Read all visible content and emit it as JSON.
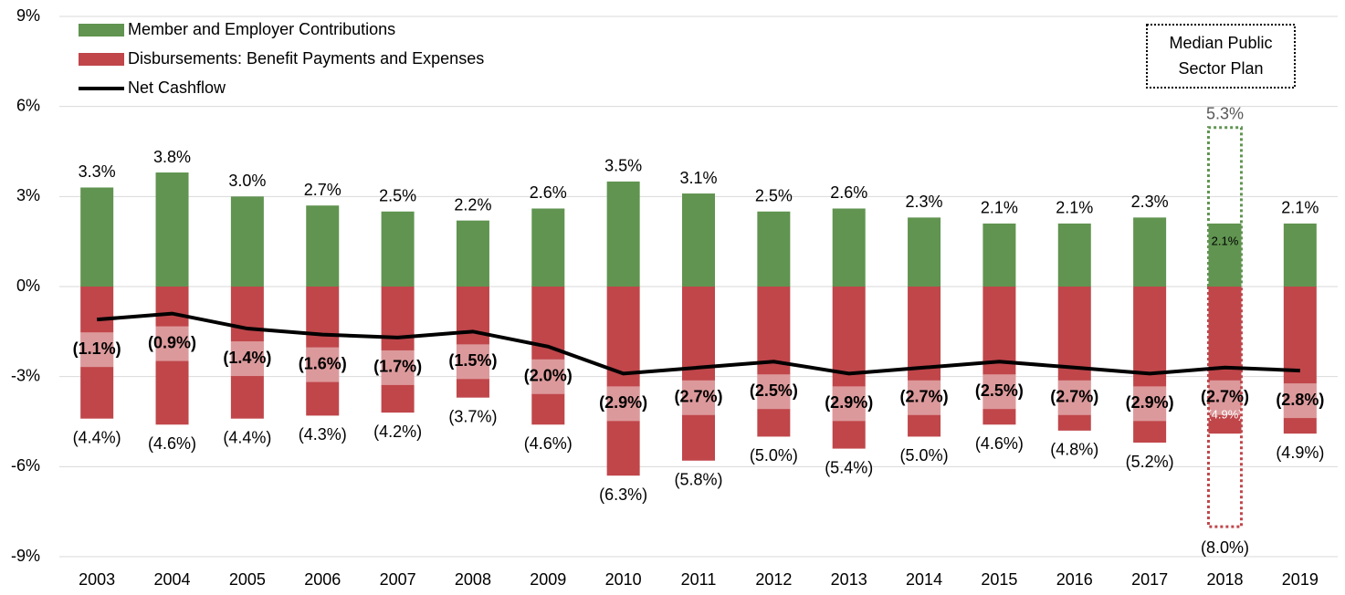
{
  "chart_data": {
    "type": "bar",
    "categories": [
      "2003",
      "2004",
      "2005",
      "2006",
      "2007",
      "2008",
      "2009",
      "2010",
      "2011",
      "2012",
      "2013",
      "2014",
      "2015",
      "2016",
      "2017",
      "2018",
      "2019"
    ],
    "series": [
      {
        "name": "Member and Employer Contributions",
        "color": "#609450",
        "values": [
          3.3,
          3.8,
          3.0,
          2.7,
          2.5,
          2.2,
          2.6,
          3.5,
          3.1,
          2.5,
          2.6,
          2.3,
          2.1,
          2.1,
          2.3,
          2.1,
          2.1
        ],
        "value_labels": [
          "3.3%",
          "3.8%",
          "3.0%",
          "2.7%",
          "2.5%",
          "2.2%",
          "2.6%",
          "3.5%",
          "3.1%",
          "2.5%",
          "2.6%",
          "2.3%",
          "2.1%",
          "2.1%",
          "2.3%",
          "2.1%",
          "2.1%"
        ]
      },
      {
        "name": "Disbursements: Benefit Payments and Expenses",
        "color": "#c0464a",
        "values": [
          -4.4,
          -4.6,
          -4.4,
          -4.3,
          -4.2,
          -3.7,
          -4.6,
          -6.3,
          -5.8,
          -5.0,
          -5.4,
          -5.0,
          -4.6,
          -4.8,
          -5.2,
          -4.9,
          -4.9
        ],
        "value_labels": [
          "(4.4%)",
          "(4.6%)",
          "(4.4%)",
          "(4.3%)",
          "(4.2%)",
          "(3.7%)",
          "(4.6%)",
          "(6.3%)",
          "(5.8%)",
          "(5.0%)",
          "(5.4%)",
          "(5.0%)",
          "(4.6%)",
          "(4.8%)",
          "(5.2%)",
          "(4.9%)",
          "(4.9%)"
        ]
      },
      {
        "name": "Net Cashflow",
        "type": "line",
        "color": "#000000",
        "values": [
          -1.1,
          -0.9,
          -1.4,
          -1.6,
          -1.7,
          -1.5,
          -2.0,
          -2.9,
          -2.7,
          -2.5,
          -2.9,
          -2.7,
          -2.5,
          -2.7,
          -2.9,
          -2.7,
          -2.8
        ],
        "value_labels": [
          "(1.1%)",
          "(0.9%)",
          "(1.4%)",
          "(1.6%)",
          "(1.7%)",
          "(1.5%)",
          "(2.0%)",
          "(2.9%)",
          "(2.7%)",
          "(2.5%)",
          "(2.9%)",
          "(2.7%)",
          "(2.5%)",
          "(2.7%)",
          "(2.9%)",
          "(2.7%)",
          "(2.8%)"
        ]
      }
    ],
    "median_plan": {
      "label_lines": [
        "Median Public",
        "Sector Plan"
      ],
      "category": "2018",
      "contributions": 5.3,
      "contributions_label": "5.3%",
      "disbursements": -8.0,
      "disbursements_label": "(8.0%)"
    },
    "ylim": [
      -9,
      9
    ],
    "yticks": [
      {
        "value": -9,
        "label": "-9%"
      },
      {
        "value": -6,
        "label": "-6%"
      },
      {
        "value": -3,
        "label": "-3%"
      },
      {
        "value": 0,
        "label": "0%"
      },
      {
        "value": 3,
        "label": "3%"
      },
      {
        "value": 6,
        "label": "6%"
      },
      {
        "value": 9,
        "label": "9%"
      }
    ],
    "grid": true
  }
}
